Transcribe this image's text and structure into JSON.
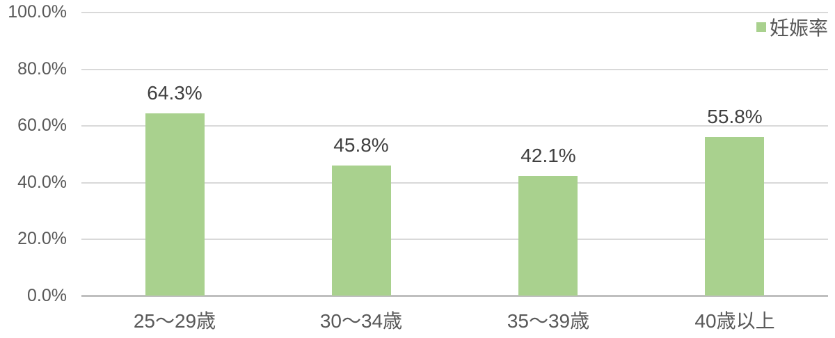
{
  "chart_data": {
    "type": "bar",
    "title": "",
    "categories": [
      "25〜29歳",
      "30〜34歳",
      "35〜39歳",
      "40歳以上"
    ],
    "series": [
      {
        "name": "妊娠率",
        "values": [
          64.3,
          45.8,
          42.1,
          55.8
        ]
      }
    ],
    "value_labels": [
      "64.3%",
      "45.8%",
      "42.1%",
      "55.8%"
    ],
    "y_ticks": [
      "100.0%",
      "80.0%",
      "60.0%",
      "40.0%",
      "20.0%",
      "0.0%"
    ],
    "ylim": [
      0,
      100
    ],
    "grid": true,
    "legend_position": "top-right",
    "colors": {
      "bar": "#a9d18e",
      "gridline": "#d9d9d9",
      "axis_line": "#bfbfbf",
      "tick_text": "#595959",
      "data_label_text": "#404040"
    }
  },
  "legend": {
    "label": "妊娠率",
    "swatch_color": "#a9d18e"
  }
}
